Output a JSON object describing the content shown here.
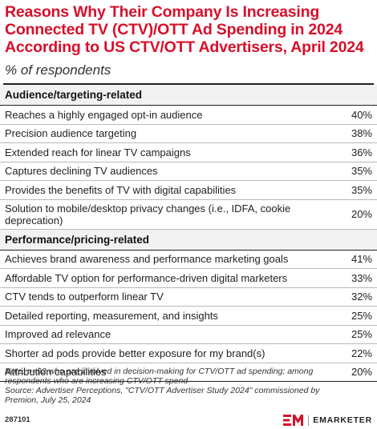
{
  "title_lines": [
    "Reasons Why Their Company Is Increasing",
    "Connected TV (CTV)/OTT Ad Spending in 2024",
    "According to US CTV/OTT Advertisers, April 2024"
  ],
  "subtitle": "% of respondents",
  "chart_data": {
    "type": "table",
    "title": "Reasons Why Their Company Is Increasing Connected TV (CTV)/OTT Ad Spending in 2024 According to US CTV/OTT Advertisers, April 2024",
    "subtitle": "% of respondents",
    "sections": [
      {
        "name": "Audience/targeting-related",
        "rows": [
          {
            "label": "Reaches a highly engaged opt-in audience",
            "value": "40%"
          },
          {
            "label": "Precision audience targeting",
            "value": "38%"
          },
          {
            "label": "Extended reach for linear TV campaigns",
            "value": "36%"
          },
          {
            "label": "Captures declining TV audiences",
            "value": "35%"
          },
          {
            "label": "Provides the benefits of TV with digital capabilities",
            "value": "35%"
          },
          {
            "label": "Solution to mobile/desktop privacy changes (i.e., IDFA, cookie deprecation)",
            "value": "20%"
          }
        ]
      },
      {
        "name": "Performance/pricing-related",
        "rows": [
          {
            "label": "Achieves brand awareness and performance marketing goals",
            "value": "41%"
          },
          {
            "label": "Affordable TV option for performance-driven digital marketers",
            "value": "33%"
          },
          {
            "label": "CTV tends to outperform linear TV",
            "value": "32%"
          },
          {
            "label": "Detailed reporting, measurement, and insights",
            "value": "25%"
          },
          {
            "label": "Improved ad relevance",
            "value": "25%"
          },
          {
            "label": "Shorter ad pods provide better exposure for my brand(s)",
            "value": "22%"
          },
          {
            "label": "Attribution capabilities",
            "value": "20%"
          }
        ]
      }
    ]
  },
  "note_lines": [
    "Note: n=92 who are involved in decision-making for CTV/OTT ad spending; among",
    "respondents who are increasing CTV/OTT spend",
    "Source: Advertiser Perceptions, \"CTV/OTT Advertiser Study 2024\" commissioned by",
    "Premion, July 25, 2024"
  ],
  "footer": {
    "chart_id": "287101",
    "brand": "EMARKETER",
    "logo_color": "#d7102b"
  },
  "colors": {
    "title": "#d7102b"
  }
}
